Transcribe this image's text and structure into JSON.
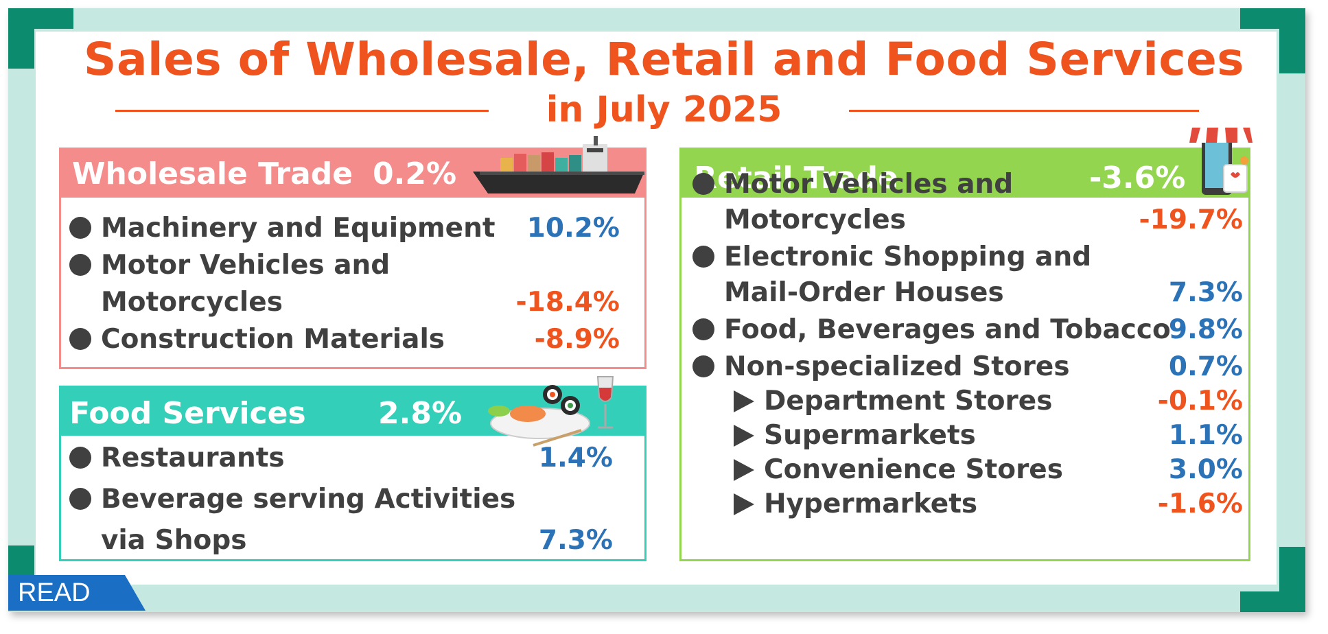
{
  "title_line1": "Sales of  Wholesale, Retail and Food  Services",
  "title_line2": "in July 2025",
  "colors": {
    "accent": "#f0541e",
    "positive": "#2b73b6",
    "negative": "#f0541e",
    "wholesale": "#f48c8c",
    "food": "#34cfb8",
    "retail": "#93d54e",
    "frame": "#c5e8e1",
    "corner": "#0d8b6f"
  },
  "wholesale": {
    "label": "Wholesale Trade",
    "value": "0.2%",
    "items": [
      {
        "label": "Machinery and Equipment",
        "value": "10.2%"
      },
      {
        "label": "Motor Vehicles and",
        "label2": "Motorcycles",
        "value": "-18.4%"
      },
      {
        "label": "Construction Materials",
        "value": "-8.9%"
      }
    ]
  },
  "food": {
    "label": "Food  Services",
    "value": "2.8%",
    "items": [
      {
        "label": "Restaurants",
        "value": "1.4%"
      },
      {
        "label": "Beverage serving Activities",
        "label2": "via Shops",
        "value": "7.3%"
      }
    ]
  },
  "retail": {
    "label": "Retail  Trade",
    "value": "-3.6%",
    "items": [
      {
        "label": "Motor Vehicles and",
        "label2": "Motorcycles",
        "value": "-19.7%"
      },
      {
        "label": "Electronic Shopping and",
        "label2": "Mail-Order Houses",
        "value": "7.3%"
      },
      {
        "label": "Food, Beverages and Tobacco",
        "value": "9.8%"
      },
      {
        "label": "Non-specialized Stores",
        "value": "0.7%"
      }
    ],
    "subitems": [
      {
        "label": "Department Stores",
        "value": "-0.1%"
      },
      {
        "label": "Supermarkets",
        "value": "1.1%"
      },
      {
        "label": "Convenience Stores",
        "value": "3.0%"
      },
      {
        "label": "Hypermarkets",
        "value": "-1.6%"
      }
    ]
  },
  "icons": {
    "wholesale": "cargo-ship-icon",
    "food": "sushi-wine-icon",
    "retail": "phone-shop-icon"
  },
  "read_label": "READ"
}
